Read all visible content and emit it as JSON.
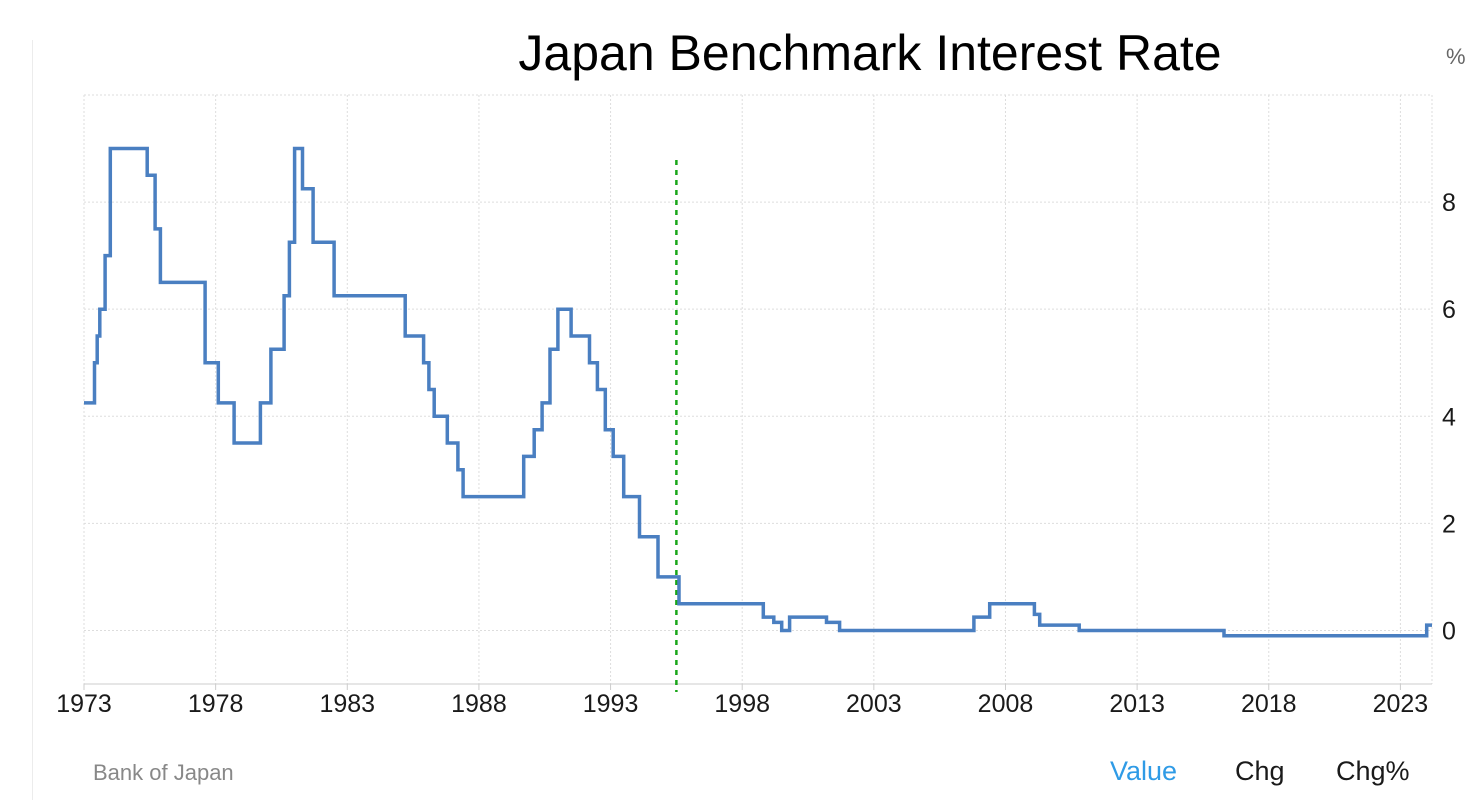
{
  "title": "Japan Benchmark Interest Rate",
  "unit": "%",
  "source": "Bank of Japan",
  "tabs": [
    {
      "label": "Value",
      "active": true
    },
    {
      "label": "Chg",
      "active": false
    },
    {
      "label": "Chg%",
      "active": false
    }
  ],
  "colors": {
    "line": "#4a7fc1",
    "marker": "#19a619",
    "grid": "#dddddd",
    "active_tab": "#2f9be6"
  },
  "chart_data": {
    "type": "line",
    "title": "Japan Benchmark Interest Rate",
    "xlabel": "",
    "ylabel": "%",
    "xlim": [
      1973.0,
      2024.2
    ],
    "ylim": [
      -1.0,
      10.0
    ],
    "x_ticks": [
      1973,
      1978,
      1983,
      1988,
      1993,
      1998,
      2003,
      2008,
      2013,
      2018,
      2023
    ],
    "y_ticks": [
      0,
      2,
      4,
      6,
      8
    ],
    "grid": true,
    "y_axis_position": "right",
    "step": true,
    "vertical_marker_x": 1995.5,
    "series": [
      {
        "x": [
          1973.0,
          1973.4,
          1973.5,
          1973.6,
          1973.8,
          1974.0,
          1974.4,
          1975.4,
          1975.7,
          1975.9,
          1976.1,
          1977.6,
          1978.1,
          1978.7,
          1979.7,
          1980.1,
          1980.6,
          1980.8,
          1981.0,
          1981.3,
          1981.7,
          1982.5,
          1985.2,
          1985.9,
          1986.1,
          1986.3,
          1986.8,
          1987.2,
          1987.4,
          1989.7,
          1990.1,
          1990.4,
          1990.7,
          1991.0,
          1991.5,
          1992.2,
          1992.5,
          1992.8,
          1993.1,
          1993.5,
          1994.1,
          1994.8,
          1995.6,
          1995.9,
          1998.8,
          1999.2,
          1999.5,
          1999.8,
          2001.2,
          2001.7,
          2001.9,
          2002.1,
          2006.8,
          2007.4,
          2009.1,
          2009.3,
          2010.8,
          2016.3,
          2024.0,
          2024.2
        ],
        "values": [
          4.25,
          5.0,
          5.5,
          6.0,
          7.0,
          9.0,
          9.0,
          8.5,
          7.5,
          6.5,
          6.5,
          5.0,
          4.25,
          3.5,
          4.25,
          5.25,
          6.25,
          7.25,
          9.0,
          8.25,
          7.25,
          6.25,
          5.5,
          5.0,
          4.5,
          4.0,
          3.5,
          3.0,
          2.5,
          3.25,
          3.75,
          4.25,
          5.25,
          6.0,
          5.5,
          5.0,
          4.5,
          3.75,
          3.25,
          2.5,
          1.75,
          1.0,
          0.5,
          0.5,
          0.25,
          0.15,
          0.0,
          0.25,
          0.15,
          0.0,
          0.0,
          0.0,
          0.25,
          0.5,
          0.3,
          0.1,
          0.0,
          -0.1,
          0.1,
          0.1
        ]
      }
    ]
  }
}
